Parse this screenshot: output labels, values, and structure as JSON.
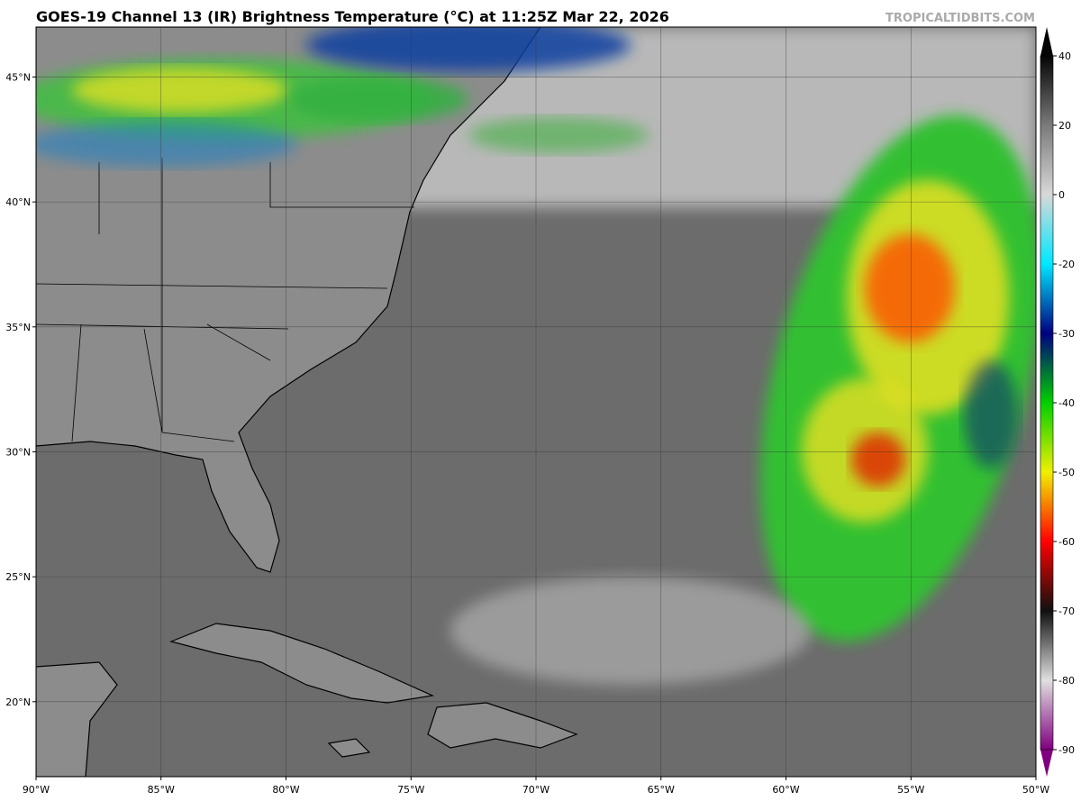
{
  "map": {
    "title": "GOES-19 Channel 13 (IR) Brightness Temperature (°C) at 11:25Z Mar 22, 2026",
    "watermark": "TROPICALTIDBITS.COM",
    "lon_range": [
      -90,
      -50
    ],
    "lat_range": [
      17,
      47
    ],
    "lon_ticks": [
      {
        "value": -90,
        "label": "90°W"
      },
      {
        "value": -85,
        "label": "85°W"
      },
      {
        "value": -80,
        "label": "80°W"
      },
      {
        "value": -75,
        "label": "75°W"
      },
      {
        "value": -70,
        "label": "70°W"
      },
      {
        "value": -65,
        "label": "65°W"
      },
      {
        "value": -60,
        "label": "60°W"
      },
      {
        "value": -55,
        "label": "55°W"
      },
      {
        "value": -50,
        "label": "50°W"
      }
    ],
    "lat_ticks": [
      {
        "value": 20,
        "label": "20°N"
      },
      {
        "value": 25,
        "label": "25°N"
      },
      {
        "value": 30,
        "label": "30°N"
      },
      {
        "value": 35,
        "label": "35°N"
      },
      {
        "value": 40,
        "label": "40°N"
      },
      {
        "value": 45,
        "label": "45°N"
      }
    ],
    "colorbar": {
      "ticks": [
        40,
        20,
        0,
        -20,
        -30,
        -40,
        -50,
        -60,
        -70,
        -80,
        -90
      ],
      "colors": [
        "#050505",
        "#7a7a7a",
        "#d8d8d8",
        "#00e8ff",
        "#000080",
        "#00d000",
        "#f0f000",
        "#ff0000",
        "#101010",
        "#e0e0e0",
        "#800080"
      ]
    }
  }
}
